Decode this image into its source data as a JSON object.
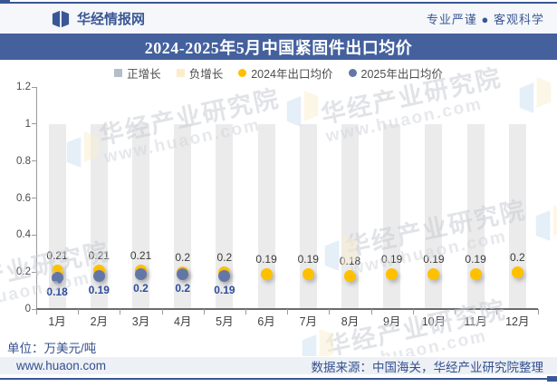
{
  "header": {
    "brand": "华经情报网",
    "tagline": "专业严谨 ● 客观科学"
  },
  "title": "2024-2025年5月中国紧固件出口均价",
  "legend": [
    {
      "label": "正增长",
      "color": "#B5BCCA",
      "shape": "square"
    },
    {
      "label": "负增长",
      "color": "#FBEDCB",
      "shape": "square"
    },
    {
      "label": "2024年出口均价",
      "color": "#FFC000",
      "shape": "circle"
    },
    {
      "label": "2025年出口均价",
      "color": "#6377A7",
      "shape": "circle"
    }
  ],
  "chart_data": {
    "type": "bar",
    "title": "2024-2025年5月中国紧固件出口均价",
    "categories": [
      "1月",
      "2月",
      "3月",
      "4月",
      "5月",
      "6月",
      "7月",
      "8月",
      "9月",
      "10月",
      "11月",
      "12月"
    ],
    "series": [
      {
        "name": "正增长",
        "type": "background-bar",
        "values": [
          1,
          1,
          1,
          1,
          1,
          1,
          1,
          1,
          1,
          1,
          1,
          1
        ]
      },
      {
        "name": "2024年出口均价",
        "type": "scatter",
        "values": [
          0.21,
          0.21,
          0.21,
          0.2,
          0.2,
          0.19,
          0.19,
          0.18,
          0.19,
          0.19,
          0.19,
          0.2
        ]
      },
      {
        "name": "2025年出口均价",
        "type": "scatter",
        "values": [
          0.18,
          0.19,
          0.2,
          0.2,
          0.19,
          null,
          null,
          null,
          null,
          null,
          null,
          null
        ]
      }
    ],
    "xlabel": "",
    "ylabel": "",
    "unit": "万美元/吨",
    "ylim": [
      0,
      1.2
    ],
    "yticks": [
      0,
      0.2,
      0.4,
      0.6,
      0.8,
      1,
      1.2
    ],
    "grid": false,
    "legend_position": "top"
  },
  "unit_label": "单位：万美元/吨",
  "footer": {
    "site": "www.huaon.com",
    "source": "数据来源：中国海关，华经产业研究院整理"
  },
  "watermark": {
    "name": "华经产业研究院",
    "url": "www.huaon.com"
  },
  "colors": {
    "brand_navy": "#3A5795",
    "title_bar": "#44619E",
    "bar_positive": "#EBEBEB",
    "bar_negative": "#FBEDCB",
    "dot_2024": "#FFC000",
    "dot_2025": "#6377A7",
    "label_2025": "#2E4C9A"
  }
}
